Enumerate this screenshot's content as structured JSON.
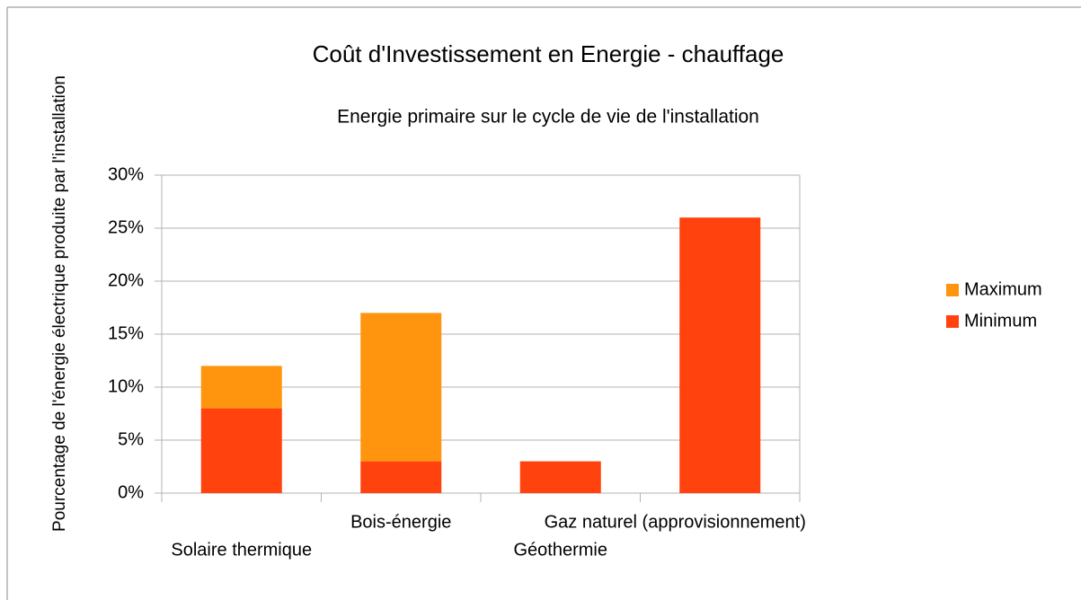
{
  "chart_data": {
    "type": "stacked_bar",
    "title": "Coût d'Investissement en Energie - chauffage",
    "subtitle": "Energie primaire sur le cycle de vie de l'installation",
    "ylabel": "Pourcentage de l'énergie électrique produite par l'installation",
    "categories": [
      "Solaire thermique",
      "Bois-énergie",
      "Géothermie",
      "Gaz naturel (approvisionnement)"
    ],
    "series": [
      {
        "name": "Minimum",
        "color": "#ff420e",
        "values": [
          8,
          3,
          3,
          26
        ]
      },
      {
        "name": "Maximum",
        "color": "#ff950e",
        "values": [
          4,
          14,
          0,
          0
        ]
      }
    ],
    "ylim": [
      0,
      30
    ],
    "yticks": [
      {
        "value": 0,
        "label": "0%"
      },
      {
        "value": 5,
        "label": "5%"
      },
      {
        "value": 10,
        "label": "10%"
      },
      {
        "value": 15,
        "label": "15%"
      },
      {
        "value": 20,
        "label": "20%"
      },
      {
        "value": 25,
        "label": "25%"
      },
      {
        "value": 30,
        "label": "30%"
      }
    ],
    "grid": true,
    "legend": "right"
  }
}
